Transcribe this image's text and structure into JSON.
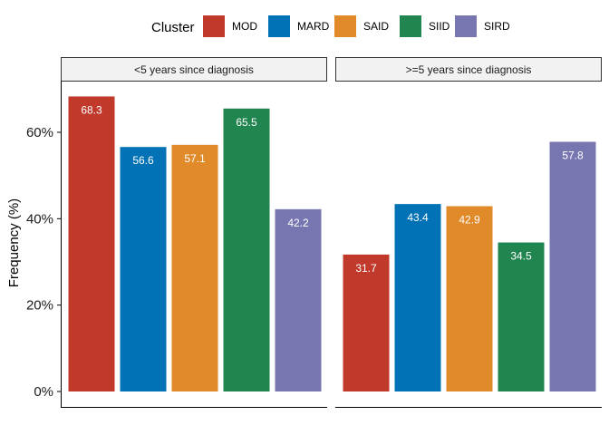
{
  "chart_data": {
    "type": "bar",
    "ylabel": "Frequency (%)",
    "ylim": [
      0,
      70
    ],
    "yticks": [
      0,
      20,
      40,
      60
    ],
    "ytick_suffix": "%",
    "grid": false,
    "legend": {
      "title": "Cluster",
      "position": "top"
    },
    "categories": [
      "MOD",
      "MARD",
      "SAID",
      "SIID",
      "SIRD"
    ],
    "colors": {
      "MOD": "#C0392B",
      "MARD": "#0072B5",
      "SAID": "#E08A2A",
      "SIID": "#21854F",
      "SIRD": "#7876B1"
    },
    "panels": [
      {
        "label": "<5 years since diagnosis",
        "values": [
          68.3,
          56.6,
          57.1,
          65.5,
          42.2
        ]
      },
      {
        "label": ">=5 years since diagnosis",
        "values": [
          31.7,
          43.4,
          42.9,
          34.5,
          57.8
        ]
      }
    ]
  }
}
